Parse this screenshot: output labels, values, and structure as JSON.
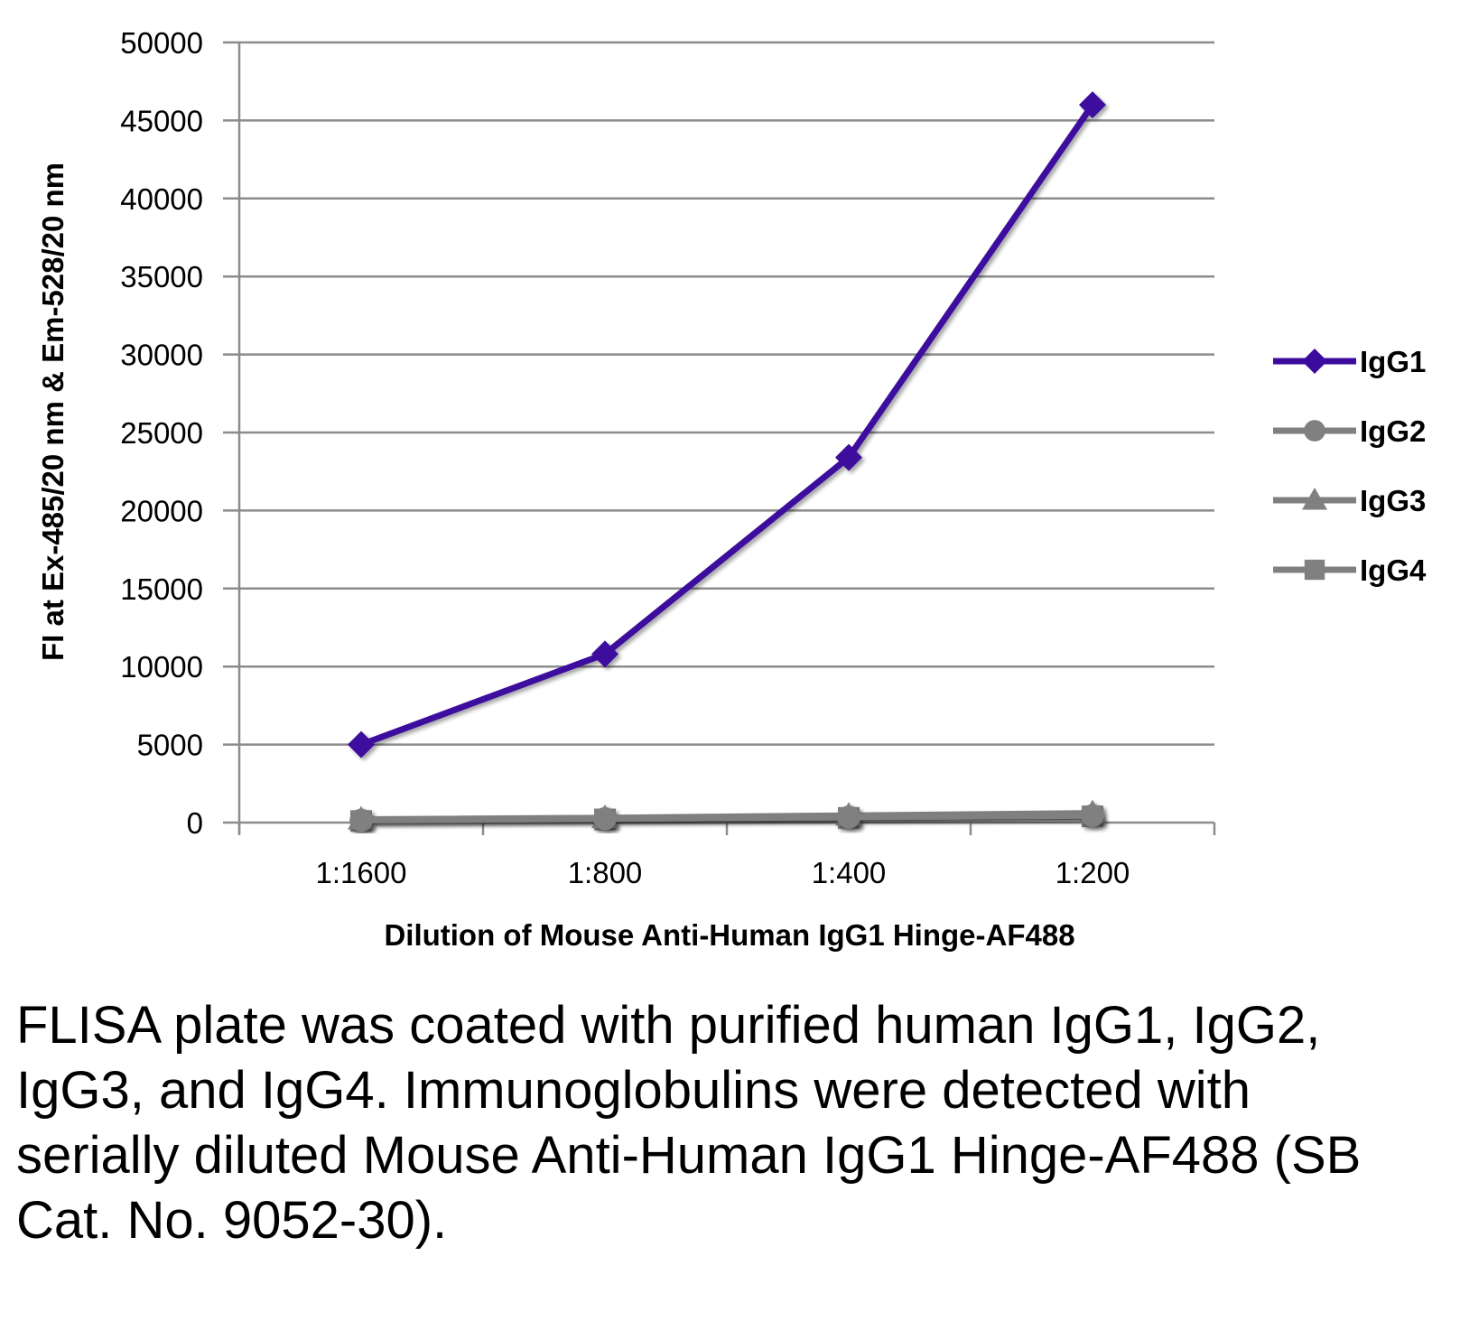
{
  "chart_data": {
    "type": "line",
    "categories": [
      "1:1600",
      "1:800",
      "1:400",
      "1:200"
    ],
    "xlabel": "Dilution of Mouse Anti-Human IgG1 Hinge-AF488",
    "ylabel": "FI at Ex-485/20 nm & Em-528/20 nm",
    "ylim": [
      0,
      50000
    ],
    "yticks": [
      0,
      5000,
      10000,
      15000,
      20000,
      25000,
      30000,
      35000,
      40000,
      45000,
      50000
    ],
    "grid": true,
    "legend_position": "right",
    "series": [
      {
        "name": "IgG1",
        "color": "#3d0a9e",
        "marker": "diamond",
        "values": [
          5000,
          10800,
          23400,
          46000
        ]
      },
      {
        "name": "IgG2",
        "color": "#808080",
        "marker": "circle",
        "values": [
          150,
          250,
          350,
          450
        ]
      },
      {
        "name": "IgG3",
        "color": "#808080",
        "marker": "triangle",
        "values": [
          200,
          300,
          450,
          600
        ]
      },
      {
        "name": "IgG4",
        "color": "#808080",
        "marker": "square",
        "values": [
          100,
          200,
          300,
          400
        ]
      }
    ]
  },
  "caption": "FLISA plate was coated with purified human IgG1, IgG2, IgG3, and IgG4.  Immunoglobulins were detected with serially diluted Mouse Anti-Human IgG1 Hinge-AF488 (SB Cat. No. 9052-30)."
}
